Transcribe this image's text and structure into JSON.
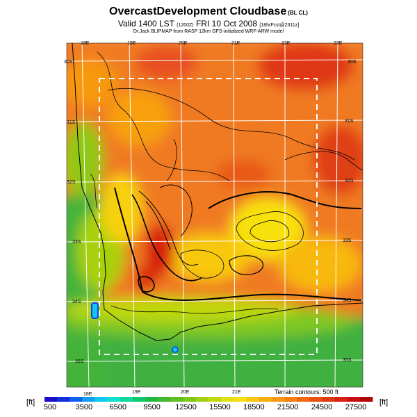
{
  "header": {
    "title": "OvercastDevelopment Cloudbase",
    "title_suffix": "(BL CL)",
    "valid_line": "Valid 1400 LST",
    "valid_code": "(1200Z)",
    "valid_date": "FRI 10 Oct 2008",
    "run_info": "[18hrFcst@2311z]",
    "credit": "Dr.Jack BLIPMAP from RASP 12km GFS-initialized WRF-ARW model"
  },
  "map": {
    "top_lon_labels": [
      "18E",
      "19E",
      "20E",
      "21E",
      "22E",
      "23E"
    ],
    "bottom_lon_labels": [
      "18E",
      "19E",
      "20E",
      "21E"
    ],
    "left_lat_labels": [
      "30S",
      "31S",
      "32S",
      "33S",
      "34S",
      "35S"
    ],
    "right_lat_labels": [
      "30S",
      "31S",
      "32S",
      "33S",
      "34S",
      "35S"
    ],
    "terrain_note": "Terrain contours: 500 ft"
  },
  "colorbar": {
    "unit_left": "[ft]",
    "unit_right": "[ft]",
    "tick_labels": [
      "500",
      "3500",
      "6500",
      "9500",
      "12500",
      "15500",
      "18500",
      "21500",
      "24500",
      "27500"
    ],
    "colors": [
      "#1a10c8",
      "#1030e0",
      "#1060f0",
      "#10a0f0",
      "#10c8f0",
      "#10e0d0",
      "#10d8a0",
      "#10c870",
      "#20b840",
      "#40b830",
      "#60c020",
      "#80c818",
      "#a0d010",
      "#c0d810",
      "#e0e010",
      "#f8e010",
      "#f8c810",
      "#f8b010",
      "#f89810",
      "#f88010",
      "#f06810",
      "#e85010",
      "#e03810",
      "#d82010",
      "#c81010",
      "#b00808"
    ]
  }
}
